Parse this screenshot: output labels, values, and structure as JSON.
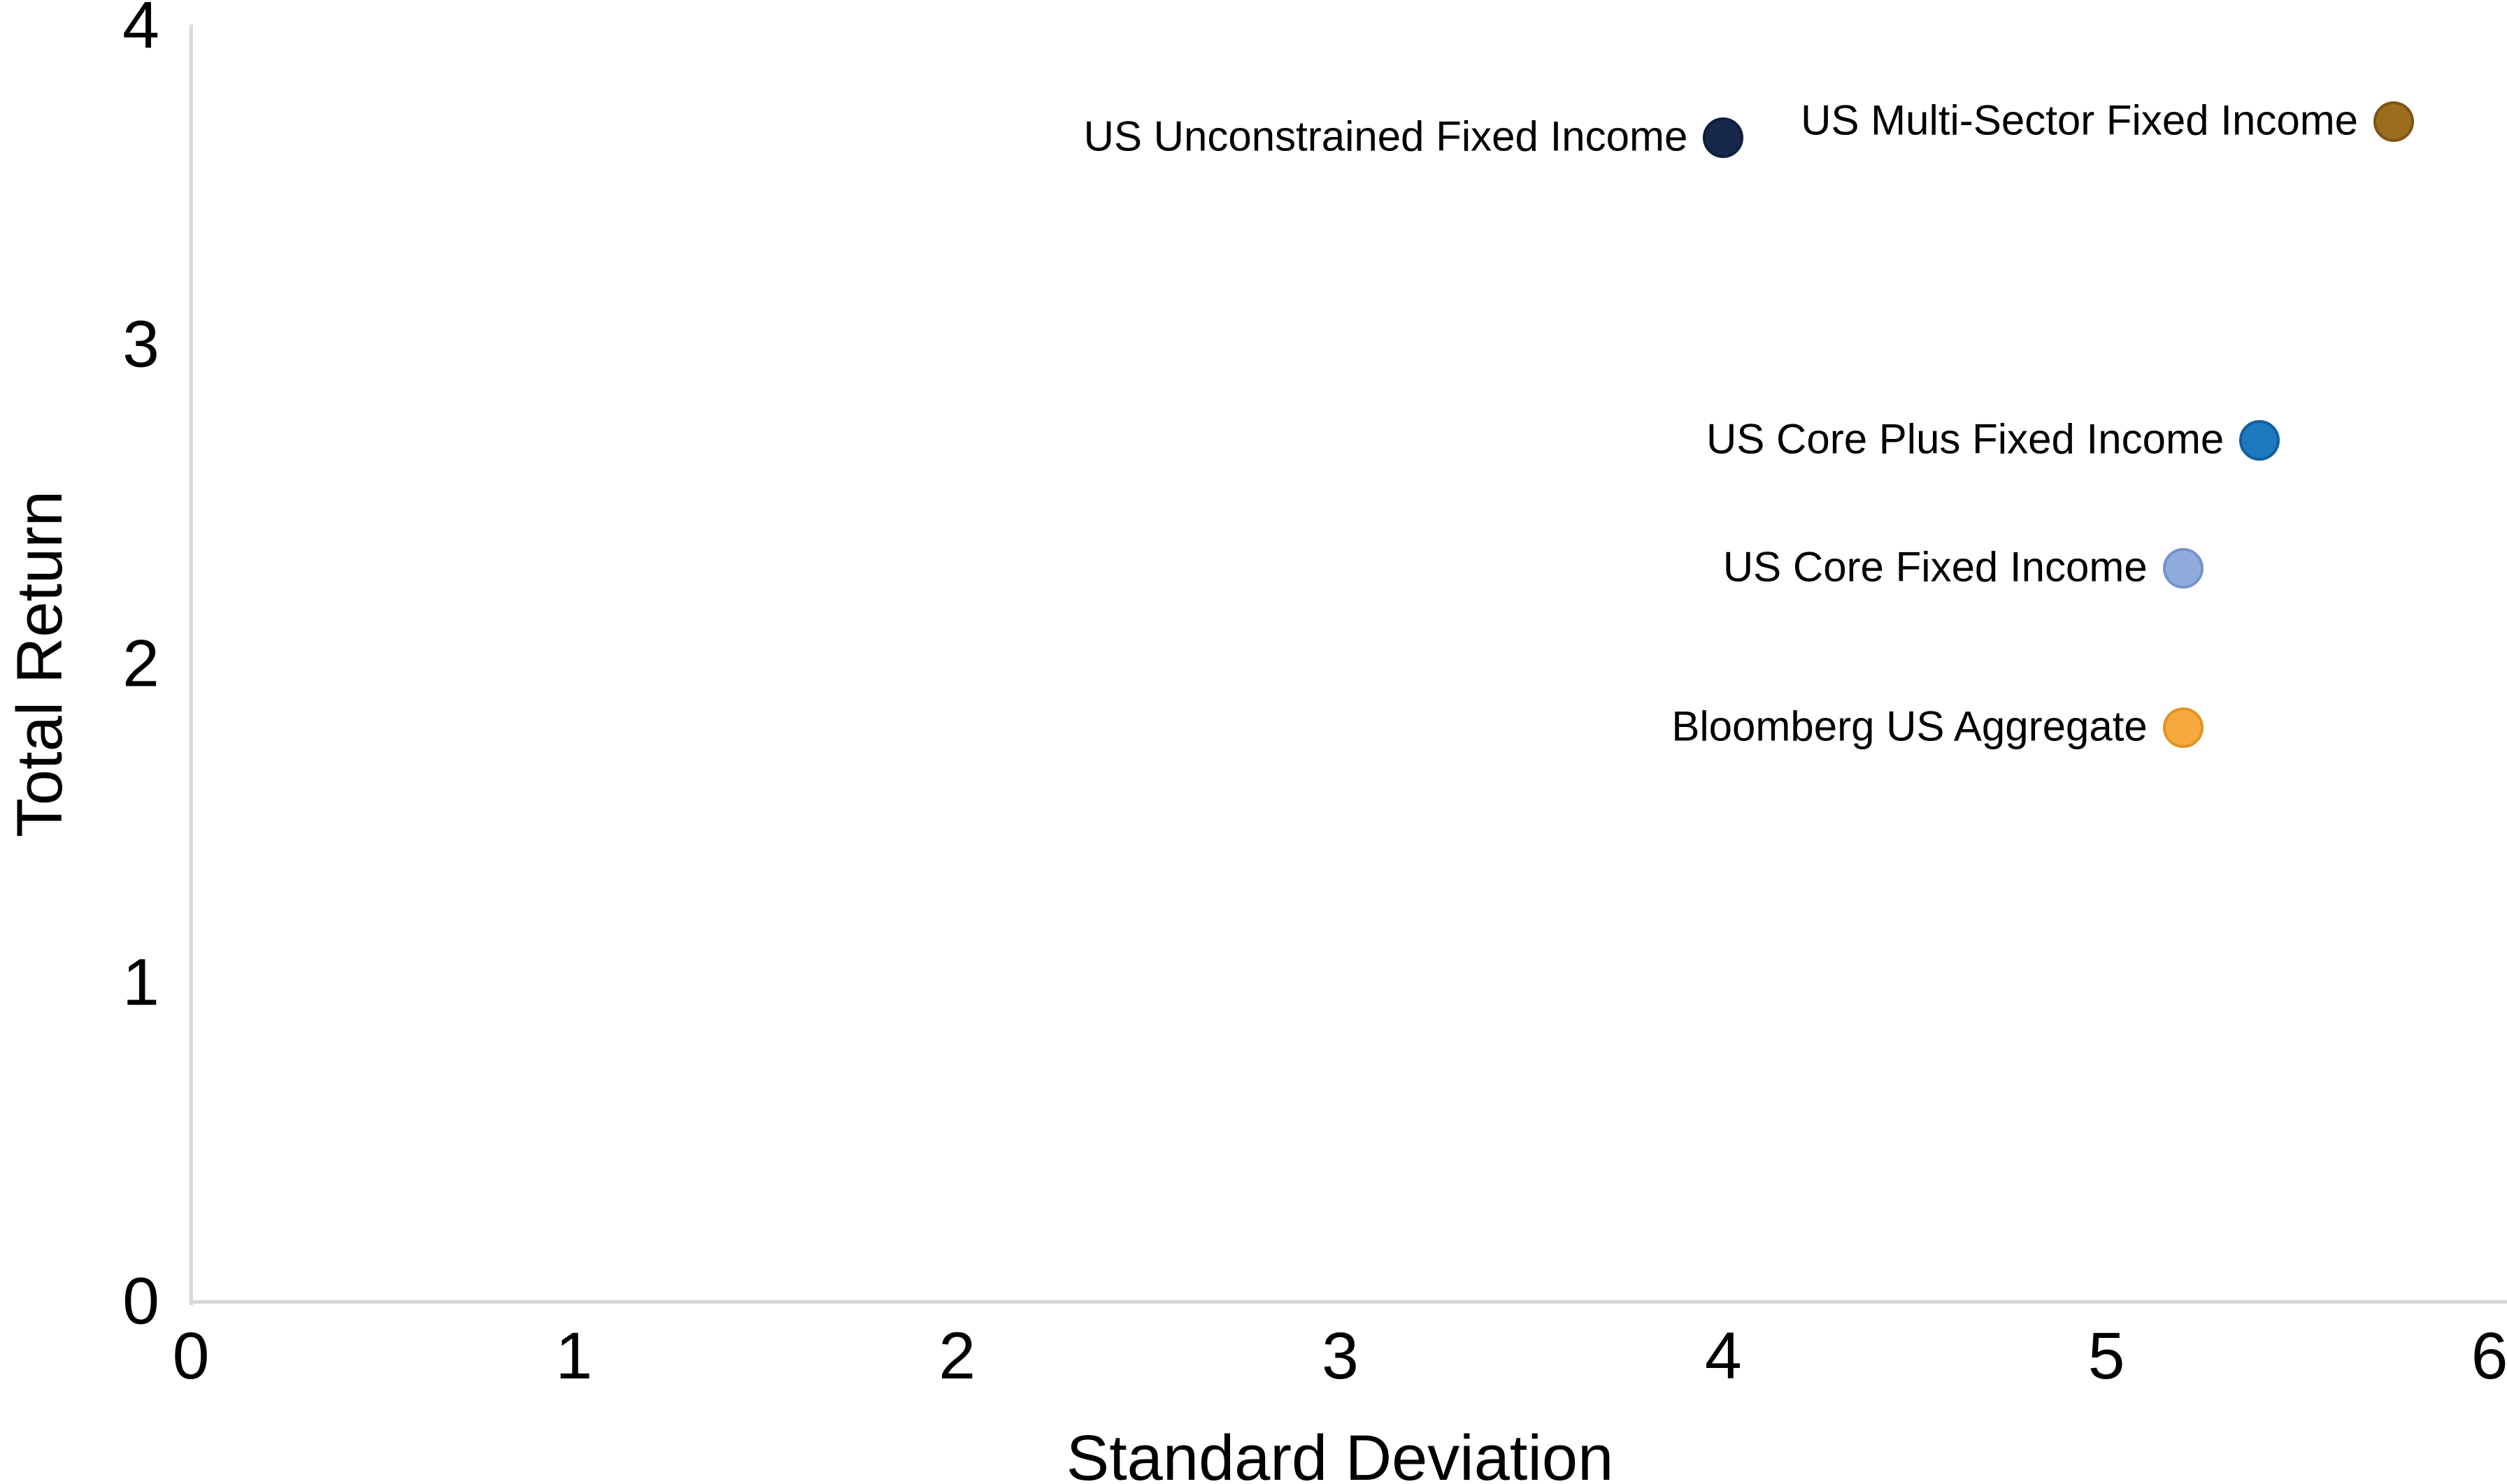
{
  "chart_data": {
    "type": "scatter",
    "title": "",
    "xlabel": "Standard Deviation",
    "ylabel": "Total Return",
    "xlim": [
      0,
      6
    ],
    "ylim": [
      0,
      4
    ],
    "xticks": [
      "0",
      "1",
      "2",
      "3",
      "4",
      "5",
      "6"
    ],
    "yticks": [
      "0",
      "1",
      "2",
      "3",
      "4"
    ],
    "grid": false,
    "legend_position": "none",
    "label_placement": "left-of-point",
    "axis_color": "#d9d9d9",
    "points": [
      {
        "label": "US Unconstrained Fixed Income",
        "x": 4.0,
        "y": 3.65,
        "fill": "#16294C",
        "border": "#101F3A"
      },
      {
        "label": "US Multi-Sector Fixed Income",
        "x": 5.75,
        "y": 3.7,
        "fill": "#9C6D1E",
        "border": "#7D5513"
      },
      {
        "label": "US Core Plus Fixed Income",
        "x": 5.4,
        "y": 2.7,
        "fill": "#1C79BF",
        "border": "#135F9F"
      },
      {
        "label": "US Core Fixed Income",
        "x": 5.2,
        "y": 2.3,
        "fill": "#90ACDD",
        "border": "#7493CB"
      },
      {
        "label": "Bloomberg US Aggregate",
        "x": 5.2,
        "y": 1.8,
        "fill": "#F6A93C",
        "border": "#DF9426"
      }
    ]
  }
}
